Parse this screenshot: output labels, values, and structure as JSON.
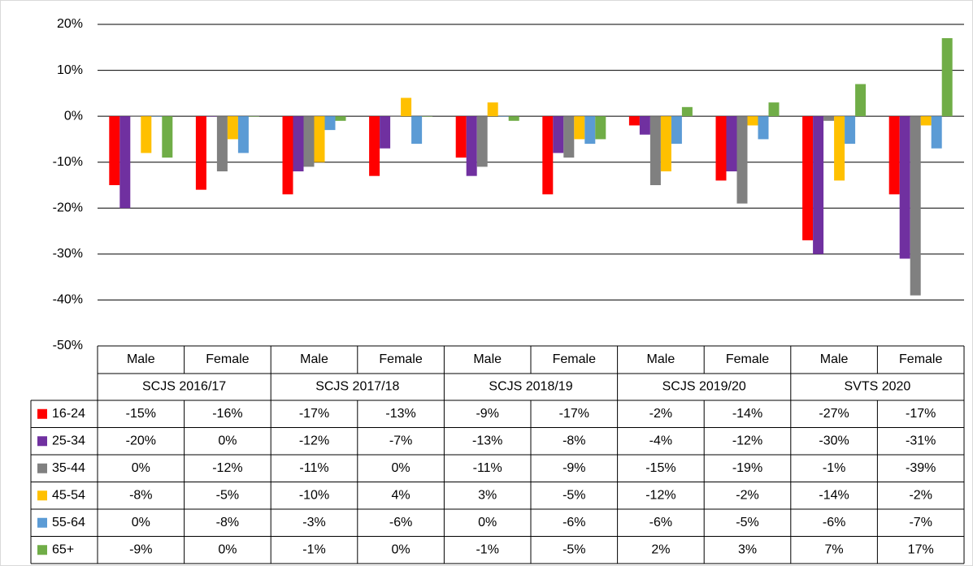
{
  "chart_data": {
    "type": "bar",
    "categories": [
      "Male",
      "Female",
      "Male",
      "Female",
      "Male",
      "Female",
      "Male",
      "Female",
      "Male",
      "Female"
    ],
    "groups": [
      "SCJS 2016/17",
      "SCJS 2017/18",
      "SCJS 2018/19",
      "SCJS 2019/20",
      "SVTS 2020"
    ],
    "ylim": [
      -50,
      20
    ],
    "yticks": [
      {
        "value": -50,
        "label": "-50%"
      },
      {
        "value": -40,
        "label": "-40%"
      },
      {
        "value": -30,
        "label": "-30%"
      },
      {
        "value": -20,
        "label": "-20%"
      },
      {
        "value": -10,
        "label": "-10%"
      },
      {
        "value": 0,
        "label": "0%"
      },
      {
        "value": 10,
        "label": "10%"
      },
      {
        "value": 20,
        "label": "20%"
      }
    ],
    "grid": true,
    "series": [
      {
        "name": "16-24",
        "color": "#ff0000",
        "values": [
          -15,
          -16,
          -17,
          -13,
          -9,
          -17,
          -2,
          -14,
          -27,
          -17
        ],
        "value_labels": [
          "-15%",
          "-16%",
          "-17%",
          "-13%",
          "-9%",
          "-17%",
          "-2%",
          "-14%",
          "-27%",
          "-17%"
        ]
      },
      {
        "name": "25-34",
        "color": "#7030a0",
        "values": [
          -20,
          0,
          -12,
          -7,
          -13,
          -8,
          -4,
          -12,
          -30,
          -31
        ],
        "value_labels": [
          "-20%",
          "0%",
          "-12%",
          "-7%",
          "-13%",
          "-8%",
          "-4%",
          "-12%",
          "-30%",
          "-31%"
        ]
      },
      {
        "name": "35-44",
        "color": "#808080",
        "values": [
          0,
          -12,
          -11,
          0,
          -11,
          -9,
          -15,
          -19,
          -1,
          -39
        ],
        "value_labels": [
          "0%",
          "-12%",
          "-11%",
          "0%",
          "-11%",
          "-9%",
          "-15%",
          "-19%",
          "-1%",
          "-39%"
        ]
      },
      {
        "name": "45-54",
        "color": "#ffc000",
        "values": [
          -8,
          -5,
          -10,
          4,
          3,
          -5,
          -12,
          -2,
          -14,
          -2
        ],
        "value_labels": [
          "-8%",
          "-5%",
          "-10%",
          "4%",
          "3%",
          "-5%",
          "-12%",
          "-2%",
          "-14%",
          "-2%"
        ]
      },
      {
        "name": "55-64",
        "color": "#5b9bd5",
        "values": [
          0,
          -8,
          -3,
          -6,
          0,
          -6,
          -6,
          -5,
          -6,
          -7
        ],
        "value_labels": [
          "0%",
          "-8%",
          "-3%",
          "-6%",
          "0%",
          "-6%",
          "-6%",
          "-5%",
          "-6%",
          "-7%"
        ]
      },
      {
        "name": "65+",
        "color": "#70ad47",
        "values": [
          -9,
          0,
          -1,
          0,
          -1,
          -5,
          2,
          3,
          7,
          17
        ],
        "value_labels": [
          "-9%",
          "0%",
          "-1%",
          "0%",
          "-1%",
          "-5%",
          "2%",
          "3%",
          "7%",
          "17%"
        ]
      }
    ]
  }
}
